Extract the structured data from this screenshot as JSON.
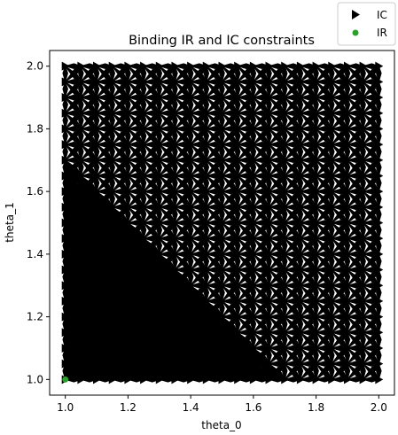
{
  "chart_data": {
    "type": "scatter",
    "title": "Binding IR and IC constraints",
    "xlabel": "theta_0",
    "ylabel": "theta_1",
    "xlim": [
      0.95,
      2.05
    ],
    "ylim": [
      0.95,
      2.05
    ],
    "xticks": [
      "1.0",
      "1.2",
      "1.4",
      "1.6",
      "1.8",
      "2.0"
    ],
    "yticks": [
      "1.0",
      "1.2",
      "1.4",
      "1.6",
      "1.8",
      "2.0"
    ],
    "grid": {
      "x_start": 1.0,
      "x_end": 2.0,
      "y_start": 1.0,
      "y_end": 2.0,
      "points_per_axis": 21,
      "dense_region": "theta_0 + theta_1 below about 2.75"
    },
    "series": [
      {
        "name": "IC",
        "marker": "triangle-right",
        "color": "#000000",
        "description": "Arrows between grid points indicating binding IC constraints"
      },
      {
        "name": "IR",
        "marker": "circle",
        "color": "#2ca02c",
        "points": [
          [
            1.0,
            1.0
          ]
        ]
      }
    ],
    "legend": {
      "placement": "top-right",
      "entries": [
        "IC",
        "IR"
      ]
    }
  }
}
